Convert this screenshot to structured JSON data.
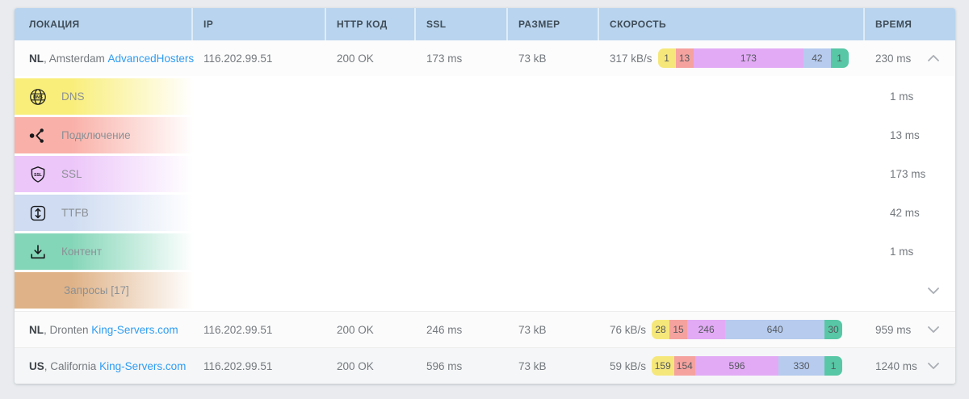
{
  "page": {
    "background": "#e9ebee"
  },
  "table": {
    "header_bg": "#b9d4ee",
    "link_color": "#2f9cf2",
    "columns": [
      {
        "key": "location",
        "label": "ЛОКАЦИЯ"
      },
      {
        "key": "ip",
        "label": "IP"
      },
      {
        "key": "http",
        "label": "HTTP КОД"
      },
      {
        "key": "ssl",
        "label": "SSL"
      },
      {
        "key": "size",
        "label": "РАЗМЕР"
      },
      {
        "key": "speed",
        "label": "СКОРОСТЬ"
      },
      {
        "key": "time",
        "label": "ВРЕМЯ"
      }
    ],
    "bar_phases": [
      "dns",
      "connect",
      "ssl",
      "ttfb",
      "content"
    ],
    "bar_colors": [
      "#f6e77b",
      "#f5a29f",
      "#e2aaf5",
      "#b6cbee",
      "#57c7a5"
    ],
    "rows": [
      {
        "country": "NL",
        "city": ", Amsterdam",
        "host": "AdvancedHosters",
        "ip": "116.202.99.51",
        "http": "200 OK",
        "ssl": "173 ms",
        "size": "73 kB",
        "speed": "317 kB/s",
        "bar": [
          1,
          13,
          173,
          42,
          1
        ],
        "time": "230 ms",
        "chevron": "up",
        "expanded": true,
        "row_bg": "#fcfcfc"
      },
      {
        "country": "NL",
        "city": ", Dronten",
        "host": "King-Servers.com",
        "ip": "116.202.99.51",
        "http": "200 OK",
        "ssl": "246 ms",
        "size": "73 kB",
        "speed": "76 kB/s",
        "bar": [
          28,
          15,
          246,
          640,
          30
        ],
        "time": "959 ms",
        "chevron": "down",
        "expanded": false,
        "row_bg": "#fbfbfb"
      },
      {
        "country": "US",
        "city": ", California",
        "host": "King-Servers.com",
        "ip": "116.202.99.51",
        "http": "200 OK",
        "ssl": "596 ms",
        "size": "73 kB",
        "speed": "59 kB/s",
        "bar": [
          159,
          154,
          596,
          330,
          1
        ],
        "time": "1240 ms",
        "chevron": "down",
        "expanded": false,
        "row_bg": "#f5f6f7"
      }
    ],
    "details": {
      "rows": [
        {
          "label": "DNS",
          "icon": "dns-globe-icon",
          "color": "#f9ee7a",
          "time": "1 ms"
        },
        {
          "label": "Подключение",
          "icon": "connection-nodes-icon",
          "color": "#f9b0a8",
          "time": "13 ms"
        },
        {
          "label": "SSL",
          "icon": "ssl-shield-icon",
          "color": "#ecc6f9",
          "time": "173 ms"
        },
        {
          "label": "TTFB",
          "icon": "ttfb-arrows-icon",
          "color": "#cfdcf1",
          "time": "42 ms"
        },
        {
          "label": "Контент",
          "icon": "content-download-icon",
          "color": "#84d6b8",
          "time": "1 ms"
        }
      ],
      "requests": {
        "label": "Запросы [17]",
        "color": "#dfb287",
        "chevron": "down"
      }
    }
  }
}
